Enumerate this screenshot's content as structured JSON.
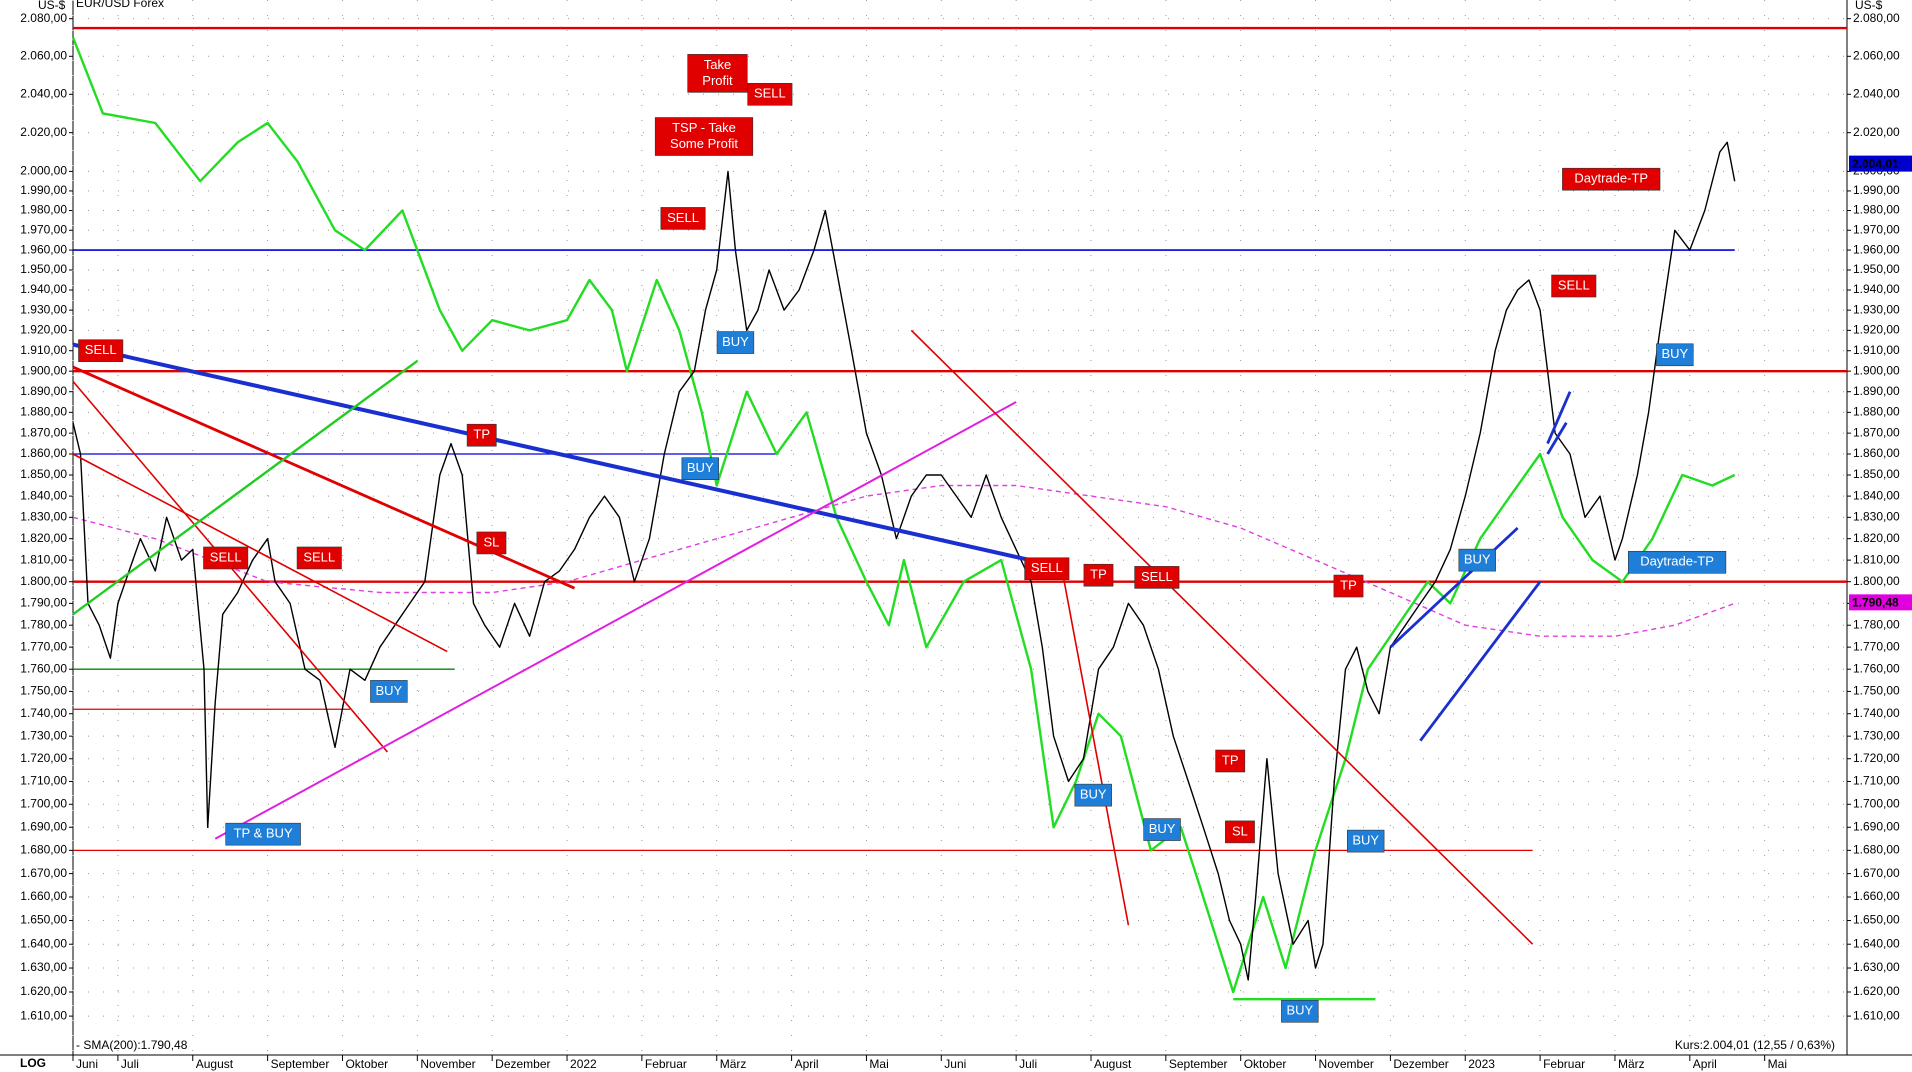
{
  "chart_data": {
    "type": "line",
    "log_scale": true,
    "grid": true,
    "axis_unit": "US-$",
    "corner_label": "LOG",
    "quote": "Kurs:2.004,01 (12,55 / 0,63%)",
    "xlim": [
      0.4,
      24.1
    ],
    "xticks": [
      {
        "value": 0.4,
        "label": "Juni"
      },
      {
        "value": 1,
        "label": "Juli"
      },
      {
        "value": 2,
        "label": "August"
      },
      {
        "value": 3,
        "label": "September"
      },
      {
        "value": 4,
        "label": "Oktober"
      },
      {
        "value": 5,
        "label": "November"
      },
      {
        "value": 6,
        "label": "Dezember"
      },
      {
        "value": 7,
        "label": "2022"
      },
      {
        "value": 8,
        "label": "Februar"
      },
      {
        "value": 9,
        "label": "März"
      },
      {
        "value": 10,
        "label": "April"
      },
      {
        "value": 11,
        "label": "Mai"
      },
      {
        "value": 12,
        "label": "Juni"
      },
      {
        "value": 13,
        "label": "Juli"
      },
      {
        "value": 14,
        "label": "August"
      },
      {
        "value": 15,
        "label": "September"
      },
      {
        "value": 16,
        "label": "Oktober"
      },
      {
        "value": 17,
        "label": "November"
      },
      {
        "value": 18,
        "label": "Dezember"
      },
      {
        "value": 19,
        "label": "2023"
      },
      {
        "value": 20,
        "label": "Februar"
      },
      {
        "value": 21,
        "label": "März"
      },
      {
        "value": 22,
        "label": "April"
      },
      {
        "value": 23,
        "label": "Mai"
      }
    ],
    "ylim": [
      1594,
      2090
    ],
    "yticks": [
      {
        "value": 1610,
        "label": "1.610,00"
      },
      {
        "value": 1620,
        "label": "1.620,00"
      },
      {
        "value": 1630,
        "label": "1.630,00"
      },
      {
        "value": 1640,
        "label": "1.640,00"
      },
      {
        "value": 1650,
        "label": "1.650,00"
      },
      {
        "value": 1660,
        "label": "1.660,00"
      },
      {
        "value": 1670,
        "label": "1.670,00"
      },
      {
        "value": 1680,
        "label": "1.680,00"
      },
      {
        "value": 1690,
        "label": "1.690,00"
      },
      {
        "value": 1700,
        "label": "1.700,00"
      },
      {
        "value": 1710,
        "label": "1.710,00"
      },
      {
        "value": 1720,
        "label": "1.720,00"
      },
      {
        "value": 1730,
        "label": "1.730,00"
      },
      {
        "value": 1740,
        "label": "1.740,00"
      },
      {
        "value": 1750,
        "label": "1.750,00"
      },
      {
        "value": 1760,
        "label": "1.760,00"
      },
      {
        "value": 1770,
        "label": "1.770,00"
      },
      {
        "value": 1780,
        "label": "1.780,00"
      },
      {
        "value": 1790,
        "label": "1.790,00"
      },
      {
        "value": 1800,
        "label": "1.800,00"
      },
      {
        "value": 1810,
        "label": "1.810,00"
      },
      {
        "value": 1820,
        "label": "1.820,00"
      },
      {
        "value": 1830,
        "label": "1.830,00"
      },
      {
        "value": 1840,
        "label": "1.840,00"
      },
      {
        "value": 1850,
        "label": "1.850,00"
      },
      {
        "value": 1860,
        "label": "1.860,00"
      },
      {
        "value": 1870,
        "label": "1.870,00"
      },
      {
        "value": 1880,
        "label": "1.880,00"
      },
      {
        "value": 1890,
        "label": "1.890,00"
      },
      {
        "value": 1900,
        "label": "1.900,00"
      },
      {
        "value": 1910,
        "label": "1.910,00"
      },
      {
        "value": 1920,
        "label": "1.920,00"
      },
      {
        "value": 1930,
        "label": "1.930,00"
      },
      {
        "value": 1940,
        "label": "1.940,00"
      },
      {
        "value": 1950,
        "label": "1.950,00"
      },
      {
        "value": 1960,
        "label": "1.960,00"
      },
      {
        "value": 1970,
        "label": "1.970,00"
      },
      {
        "value": 1980,
        "label": "1.980,00"
      },
      {
        "value": 1990,
        "label": "1.990,00"
      },
      {
        "value": 2000,
        "label": "2.000,00"
      },
      {
        "value": 2020,
        "label": "2.020,00"
      },
      {
        "value": 2040,
        "label": "2.040,00"
      },
      {
        "value": 2060,
        "label": "2.060,00"
      },
      {
        "value": 2080,
        "label": "2.080,00"
      }
    ],
    "series": [
      {
        "color": "#000000",
        "width": 1.4,
        "x": [
          0.4,
          0.5,
          0.6,
          0.75,
          0.9,
          1.0,
          1.15,
          1.3,
          1.5,
          1.65,
          1.85,
          2.0,
          2.15,
          2.2,
          2.3,
          2.4,
          2.6,
          2.8,
          3.0,
          3.1,
          3.3,
          3.5,
          3.7,
          3.9,
          4.1,
          4.3,
          4.5,
          4.7,
          4.9,
          5.1,
          5.3,
          5.45,
          5.6,
          5.75,
          5.9,
          6.1,
          6.3,
          6.5,
          6.7,
          6.9,
          7.1,
          7.3,
          7.5,
          7.7,
          7.9,
          8.1,
          8.3,
          8.5,
          8.7,
          8.85,
          9.0,
          9.15,
          9.25,
          9.4,
          9.55,
          9.7,
          9.9,
          10.1,
          10.3,
          10.45,
          10.6,
          10.8,
          11.0,
          11.2,
          11.4,
          11.6,
          11.8,
          12.0,
          12.2,
          12.4,
          12.6,
          12.8,
          13.0,
          13.2,
          13.35,
          13.5,
          13.7,
          13.9,
          14.1,
          14.3,
          14.5,
          14.7,
          14.9,
          15.1,
          15.3,
          15.5,
          15.7,
          15.85,
          16.0,
          16.1,
          16.2,
          16.35,
          16.5,
          16.7,
          16.9,
          17.0,
          17.1,
          17.25,
          17.4,
          17.55,
          17.7,
          17.85,
          18.0,
          18.2,
          18.4,
          18.6,
          18.8,
          19.0,
          19.2,
          19.4,
          19.55,
          19.7,
          19.85,
          20.0,
          20.1,
          20.2,
          20.4,
          20.6,
          20.8,
          21.0,
          21.1,
          21.3,
          21.45,
          21.6,
          21.8,
          22.0,
          22.2,
          22.4,
          22.5,
          22.6
        ],
        "values": [
          1875,
          1860,
          1790,
          1780,
          1765,
          1790,
          1805,
          1820,
          1805,
          1830,
          1810,
          1815,
          1760,
          1690,
          1745,
          1785,
          1795,
          1810,
          1820,
          1800,
          1790,
          1760,
          1755,
          1725,
          1760,
          1755,
          1770,
          1780,
          1790,
          1800,
          1850,
          1865,
          1850,
          1790,
          1780,
          1770,
          1790,
          1775,
          1800,
          1805,
          1815,
          1830,
          1840,
          1830,
          1800,
          1820,
          1860,
          1890,
          1900,
          1930,
          1950,
          2000,
          1960,
          1920,
          1930,
          1950,
          1930,
          1940,
          1960,
          1980,
          1950,
          1910,
          1870,
          1850,
          1820,
          1840,
          1850,
          1850,
          1840,
          1830,
          1850,
          1830,
          1815,
          1800,
          1770,
          1730,
          1710,
          1720,
          1760,
          1770,
          1790,
          1780,
          1760,
          1730,
          1710,
          1690,
          1670,
          1650,
          1640,
          1625,
          1660,
          1720,
          1670,
          1640,
          1650,
          1630,
          1640,
          1710,
          1760,
          1770,
          1750,
          1740,
          1770,
          1780,
          1790,
          1800,
          1815,
          1840,
          1870,
          1910,
          1930,
          1940,
          1945,
          1930,
          1900,
          1870,
          1860,
          1830,
          1840,
          1810,
          1820,
          1850,
          1880,
          1920,
          1970,
          1960,
          1980,
          2010,
          2015,
          1995
        ]
      },
      {
        "name": "EUR/USD Forex",
        "color": "#22dd22",
        "width": 2.4,
        "x": [
          0.4,
          0.8,
          1.5,
          2.1,
          2.6,
          3.0,
          3.4,
          3.9,
          4.3,
          4.8,
          5.0,
          5.3,
          5.6,
          6.0,
          6.5,
          7.0,
          7.3,
          7.6,
          7.8,
          8.2,
          8.5,
          8.8,
          9.0,
          9.4,
          9.8,
          10.2,
          10.6,
          11.0,
          11.3,
          11.5,
          11.8,
          12.3,
          12.8,
          13.2,
          13.5,
          13.8,
          14.1,
          14.4,
          14.8,
          15.2,
          15.4,
          15.7,
          15.9,
          16.3,
          16.6,
          17.0,
          17.4,
          17.7,
          18.1,
          18.5,
          18.8,
          19.2,
          19.6,
          20.0,
          20.3,
          20.7,
          21.1,
          21.5,
          21.9,
          22.3,
          22.6
        ],
        "values": [
          2070,
          2030,
          2025,
          1995,
          2015,
          2025,
          2005,
          1970,
          1960,
          1980,
          1960,
          1930,
          1910,
          1925,
          1920,
          1925,
          1945,
          1930,
          1900,
          1945,
          1920,
          1880,
          1845,
          1890,
          1860,
          1880,
          1830,
          1800,
          1780,
          1810,
          1770,
          1800,
          1810,
          1760,
          1690,
          1710,
          1740,
          1730,
          1680,
          1690,
          1670,
          1640,
          1620,
          1660,
          1630,
          1680,
          1720,
          1760,
          1780,
          1800,
          1790,
          1820,
          1840,
          1860,
          1830,
          1810,
          1800,
          1820,
          1850,
          1845,
          1850
        ]
      },
      {
        "name": "- SMA(200):1.790,48",
        "color": "#e040e0",
        "width": 1.4,
        "dash": true,
        "x": [
          0.4,
          1.5,
          3,
          4.5,
          6,
          7,
          8,
          9,
          10,
          11,
          12,
          13,
          14,
          15,
          16,
          17,
          18,
          19,
          20,
          21,
          21.8,
          22.6
        ],
        "values": [
          1830,
          1820,
          1800,
          1795,
          1795,
          1800,
          1810,
          1820,
          1830,
          1840,
          1845,
          1845,
          1840,
          1835,
          1825,
          1810,
          1795,
          1780,
          1775,
          1775,
          1780,
          1790
        ]
      }
    ],
    "hlines": [
      {
        "value": 2075,
        "color": "#e00000",
        "width": 2.4
      },
      {
        "value": 1960,
        "color": "#0000dd",
        "width": 1.6,
        "x": [
          0.4,
          22.6
        ]
      },
      {
        "value": 1900,
        "color": "#e00000",
        "width": 2.4
      },
      {
        "value": 1800,
        "color": "#e00000",
        "width": 2.4
      },
      {
        "value": 1860,
        "color": "#0000dd",
        "width": 1.2,
        "x": [
          0.4,
          9.8
        ]
      },
      {
        "value": 1680,
        "color": "#e00000",
        "width": 1.2,
        "x": [
          0.4,
          19.9
        ]
      },
      {
        "value": 1742,
        "color": "#e00000",
        "width": 1.2,
        "x": [
          0.4,
          4.1
        ]
      },
      {
        "value": 1760,
        "color": "#008800",
        "width": 1.4,
        "x": [
          0.4,
          5.5
        ]
      },
      {
        "value": 1617,
        "color": "#22dd22",
        "width": 2.4,
        "x": [
          15.9,
          17.8
        ]
      }
    ],
    "trendlines": [
      {
        "x": [
          0.4,
          13.7
        ],
        "y": [
          1913,
          1806
        ],
        "color": "#1a2fd0",
        "width": 4
      },
      {
        "x": [
          0.4,
          7.1
        ],
        "y": [
          1902,
          1797
        ],
        "color": "#e00000",
        "width": 2.8
      },
      {
        "x": [
          0.4,
          5.4
        ],
        "y": [
          1860,
          1768
        ],
        "color": "#e00000",
        "width": 1.6
      },
      {
        "x": [
          0.4,
          4.6
        ],
        "y": [
          1895,
          1723
        ],
        "color": "#e00000",
        "width": 1.6
      },
      {
        "x": [
          0.4,
          5.0
        ],
        "y": [
          1785,
          1905
        ],
        "color": "#22cc22",
        "width": 2.4
      },
      {
        "x": [
          2.3,
          13.0
        ],
        "y": [
          1685,
          1885
        ],
        "color": "#e020e0",
        "width": 2
      },
      {
        "x": [
          11.6,
          19.9
        ],
        "y": [
          1920,
          1640
        ],
        "color": "#e00000",
        "width": 1.6
      },
      {
        "x": [
          13.6,
          14.5
        ],
        "y": [
          1808,
          1648
        ],
        "color": "#e00000",
        "width": 1.6
      },
      {
        "x": [
          18.0,
          19.7
        ],
        "y": [
          1770,
          1825
        ],
        "color": "#1a2fd0",
        "width": 2.8
      },
      {
        "x": [
          18.4,
          20.0
        ],
        "y": [
          1728,
          1800
        ],
        "color": "#1a2fd0",
        "width": 2.8
      },
      {
        "x": [
          20.1,
          20.4
        ],
        "y": [
          1865,
          1890
        ],
        "color": "#1a2fd0",
        "width": 2.8
      },
      {
        "x": [
          20.1,
          20.35
        ],
        "y": [
          1860,
          1875
        ],
        "color": "#1a2fd0",
        "width": 2.8
      }
    ],
    "labels": [
      {
        "lines": [
          "Take",
          "Profit"
        ],
        "x": 9.01,
        "y": 2051,
        "color": "red"
      },
      {
        "text": "SELL",
        "x": 9.71,
        "y": 2040,
        "color": "red"
      },
      {
        "lines": [
          "TSP - Take",
          "Some Profit"
        ],
        "x": 8.83,
        "y": 2018,
        "color": "red"
      },
      {
        "text": "SELL",
        "x": 8.55,
        "y": 1976,
        "color": "red"
      },
      {
        "text": "BUY",
        "x": 9.25,
        "y": 1914,
        "color": "blue"
      },
      {
        "text": "SELL",
        "x": 0.77,
        "y": 1910,
        "color": "red"
      },
      {
        "text": "TP",
        "x": 5.86,
        "y": 1869,
        "color": "red"
      },
      {
        "text": "BUY",
        "x": 8.78,
        "y": 1853,
        "color": "blue"
      },
      {
        "text": "SL",
        "x": 5.99,
        "y": 1818,
        "color": "red"
      },
      {
        "text": "SELL",
        "x": 2.44,
        "y": 1811,
        "color": "red"
      },
      {
        "text": "SELL",
        "x": 3.69,
        "y": 1811,
        "color": "red"
      },
      {
        "text": "SELL",
        "x": 13.41,
        "y": 1806,
        "color": "red"
      },
      {
        "text": "TP",
        "x": 14.1,
        "y": 1803,
        "color": "red"
      },
      {
        "text": "SELL",
        "x": 14.88,
        "y": 1802,
        "color": "red"
      },
      {
        "text": "TP",
        "x": 17.44,
        "y": 1798,
        "color": "red"
      },
      {
        "text": "BUY",
        "x": 19.16,
        "y": 1810,
        "color": "blue"
      },
      {
        "text": "Daytrade-TP",
        "x": 20.95,
        "y": 1996,
        "color": "red"
      },
      {
        "text": "SELL",
        "x": 20.45,
        "y": 1942,
        "color": "red"
      },
      {
        "text": "BUY",
        "x": 21.8,
        "y": 1908,
        "color": "blue"
      },
      {
        "text": "Daytrade-TP",
        "x": 21.83,
        "y": 1809,
        "color": "blue"
      },
      {
        "text": "BUY",
        "x": 4.62,
        "y": 1750,
        "color": "blue"
      },
      {
        "text": "TP & BUY",
        "x": 2.94,
        "y": 1687,
        "color": "blue"
      },
      {
        "text": "BUY",
        "x": 14.03,
        "y": 1704,
        "color": "blue"
      },
      {
        "text": "BUY",
        "x": 14.95,
        "y": 1689,
        "color": "blue"
      },
      {
        "text": "TP",
        "x": 15.86,
        "y": 1719,
        "color": "red"
      },
      {
        "text": "SL",
        "x": 15.99,
        "y": 1688,
        "color": "red"
      },
      {
        "text": "BUY",
        "x": 17.67,
        "y": 1684,
        "color": "blue"
      },
      {
        "text": "BUY",
        "x": 16.79,
        "y": 1612,
        "color": "blue"
      }
    ],
    "price_tags": [
      {
        "value": 2004.01,
        "label": "2.004,01",
        "color": "#0000cc"
      },
      {
        "value": 1790.48,
        "label": "1.790,48",
        "color": "#e000e0"
      }
    ]
  }
}
